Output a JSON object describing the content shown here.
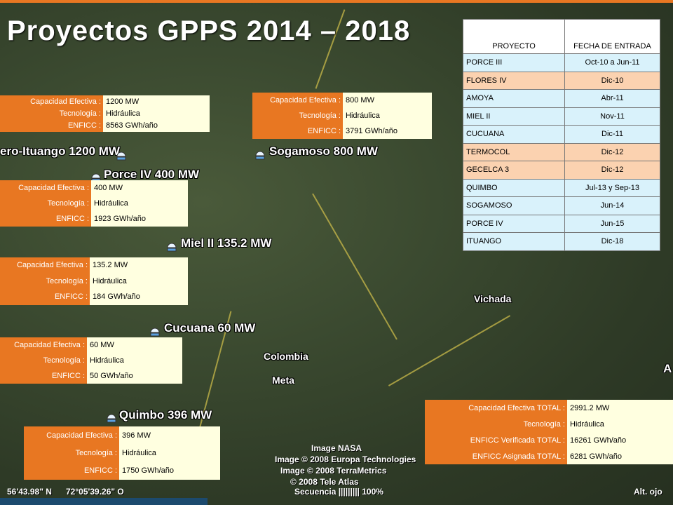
{
  "title": "Proyectos GPPS  2014 – 2018",
  "map_labels": {
    "ituango": "ero-Ituango 1200 MW",
    "porce_iv": "Porce IV 400 MW",
    "sogamoso": "Sogamoso 800 MW",
    "miel": "Miel II 135.2 MW",
    "cucuana": "Cucuana 60 MW",
    "quimbo": "Quimbo 396 MW",
    "vichada": "Vichada",
    "colombia": "Colombia",
    "meta": "Meta",
    "edge_a": "A"
  },
  "info_boxes": {
    "ituango": {
      "cap_label": "Capacidad Efectiva :",
      "cap": "1200 MW",
      "tec_label": "Tecnología :",
      "tec": "Hidráulica",
      "enf_label": "ENFICC :",
      "enf": " 8563  GWh/año"
    },
    "sogamoso": {
      "cap_label": "Capacidad Efectiva :",
      "cap": "800 MW",
      "tec_label": "Tecnología :",
      "tec": "Hidráulica",
      "enf_label": "ENFICC :",
      "enf": " 3791  GWh/año"
    },
    "porce_iv": {
      "cap_label": "Capacidad Efectiva :",
      "cap": "400 MW",
      "tec_label": "Tecnología :",
      "tec": "Hidráulica",
      "enf_label": "ENFICC :",
      "enf": "1923  GWh/año"
    },
    "miel": {
      "cap_label": "Capacidad Efectiva :",
      "cap": "135.2 MW",
      "tec_label": "Tecnología :",
      "tec": "Hidráulica",
      "enf_label": "ENFICC :",
      "enf": "184  GWh/año"
    },
    "cucuana": {
      "cap_label": "Capacidad Efectiva :",
      "cap": "60 MW",
      "tec_label": "Tecnología :",
      "tec": "Hidráulica",
      "enf_label": "ENFICC :",
      "enf": " 50  GWh/año"
    },
    "quimbo": {
      "cap_label": "Capacidad Efectiva :",
      "cap": "396 MW",
      "tec_label": "Tecnología :",
      "tec": "Hidráulica",
      "enf_label": "ENFICC :",
      "enf": " 1750  GWh/año"
    },
    "total": {
      "cap_label": "Capacidad Efectiva TOTAL  :",
      "cap": "2991.2 MW",
      "tec_label": "Tecnología :",
      "tec": "Hidráulica",
      "ver_label": "ENFICC Verificada TOTAL  :",
      "ver": "16261  GWh/año",
      "asig_label": "ENFICC Asignada TOTAL  :",
      "asig": "6281  GWh/año"
    }
  },
  "schedule": {
    "headers": {
      "project": "PROYECTO",
      "date": "FECHA DE ENTRADA"
    },
    "rows": [
      {
        "name": "PORCE III",
        "date": "Oct-10 a Jun-11"
      },
      {
        "name": "FLORES IV",
        "date": "Dic-10"
      },
      {
        "name": "AMOYA",
        "date": "Abr-11"
      },
      {
        "name": "MIEL II",
        "date": "Nov-11"
      },
      {
        "name": "CUCUANA",
        "date": "Dic-11"
      },
      {
        "name": "TERMOCOL",
        "date": "Dic-12"
      },
      {
        "name": "GECELCA 3",
        "date": "Dic-12"
      },
      {
        "name": "QUIMBO",
        "date": "Jul-13 y Sep-13"
      },
      {
        "name": "SOGAMOSO",
        "date": "Jun-14"
      },
      {
        "name": "PORCE IV",
        "date": "Jun-15"
      },
      {
        "name": "ITUANGO",
        "date": "Dic-18"
      }
    ]
  },
  "footer": {
    "coord_lat": "56'43.98\" N",
    "coord_lon": "72°05'39.26\" O",
    "credit1": "Image NASA",
    "credit2": "Image © 2008 Europa Technologies",
    "credit3": "Image © 2008 TerraMetrics",
    "credit4": "© 2008 Tele Atlas",
    "stream": "Secuencia  |||||||||  100%",
    "alt": "Alt. ojo"
  },
  "colors": {
    "accent": "#e87722",
    "value_bg": "#ffffe0",
    "row_blue": "#d9f2fb",
    "row_peach": "#fbd2b0"
  }
}
